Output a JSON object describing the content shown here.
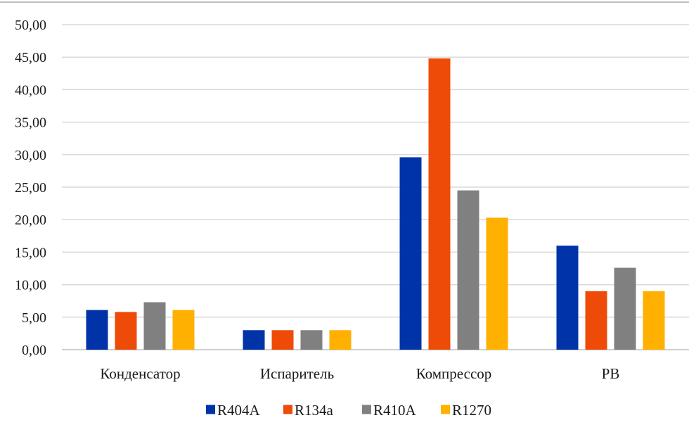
{
  "chart_data": {
    "type": "bar",
    "title": "",
    "xlabel": "",
    "ylabel": "",
    "ylim": [
      0,
      50
    ],
    "yticks": [
      0,
      5,
      10,
      15,
      20,
      25,
      30,
      35,
      40,
      45,
      50
    ],
    "ytick_labels": [
      "0,00",
      "5,00",
      "10,00",
      "15,00",
      "20,00",
      "25,00",
      "30,00",
      "35,00",
      "40,00",
      "45,00",
      "50,00"
    ],
    "grid": true,
    "legend_position": "bottom",
    "categories": [
      "Конденсатор",
      "Испаритель",
      "Компрессор",
      "РВ"
    ],
    "series": [
      {
        "name": "R404A",
        "color": "#0033a8",
        "values": [
          6.1,
          3.0,
          29.6,
          16.0
        ]
      },
      {
        "name": "R134a",
        "color": "#ee4b08",
        "values": [
          5.8,
          3.0,
          44.8,
          9.0
        ]
      },
      {
        "name": "R410A",
        "color": "#808080",
        "values": [
          7.3,
          3.0,
          24.5,
          12.6
        ]
      },
      {
        "name": "R1270",
        "color": "#ffb000",
        "values": [
          6.1,
          3.0,
          20.3,
          9.0
        ]
      }
    ]
  }
}
